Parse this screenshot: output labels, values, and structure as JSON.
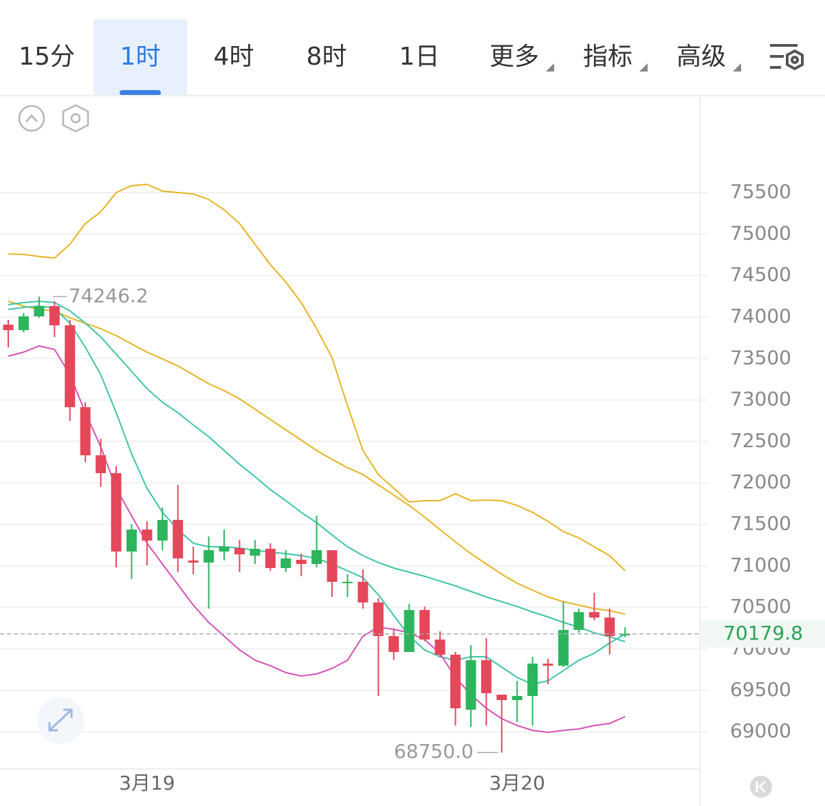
{
  "tabs": [
    {
      "label": "15分"
    },
    {
      "label": "1时"
    },
    {
      "label": "4时"
    },
    {
      "label": "8时"
    },
    {
      "label": "1日"
    },
    {
      "label": "更多",
      "menu": true
    },
    {
      "label": "指标",
      "menu": true
    },
    {
      "label": "高级",
      "menu": true
    }
  ],
  "active_tab": 1,
  "chart_data": {
    "type": "candlestick",
    "categories": [
      null,
      null,
      null,
      null,
      null,
      null,
      null,
      null,
      null,
      "3月19",
      null,
      null,
      null,
      null,
      null,
      null,
      null,
      null,
      null,
      null,
      null,
      null,
      null,
      null,
      null,
      null,
      null,
      null,
      null,
      null,
      null,
      null,
      null,
      "3月20",
      null,
      null,
      null,
      null,
      null,
      null,
      null
    ],
    "open": [
      73908,
      73842,
      74008,
      74132,
      73900,
      72913,
      72333,
      72118,
      71173,
      71438,
      71305,
      71554,
      71065,
      71040,
      71173,
      71214,
      71123,
      71206,
      70974,
      71073,
      71023,
      71189,
      70791,
      70808,
      70559,
      70153,
      69962,
      70468,
      70112,
      69929,
      69266,
      69863,
      69448,
      69382,
      69432,
      69822,
      69797,
      70228,
      70443,
      70377,
      70162
    ],
    "high": [
      73966,
      74049,
      74246.2,
      74190,
      73966,
      72971,
      72532,
      72201,
      71504,
      71537,
      71703,
      71977,
      71231,
      71355,
      71438,
      71313,
      71313,
      71272,
      71189,
      71148,
      71604,
      71189,
      70899,
      70957,
      70609,
      70236,
      70543,
      70509,
      70211,
      69962,
      70045,
      70128,
      69448,
      69614,
      69904,
      69880,
      70568,
      70485,
      70675,
      70485,
      70261
    ],
    "low": [
      73635,
      73817,
      73991,
      73759,
      72748,
      72250,
      71952,
      70982,
      70841,
      71007,
      71189,
      70924,
      70899,
      70485,
      71065,
      70924,
      71023,
      70941,
      70924,
      70874,
      70982,
      70626,
      70626,
      70485,
      69432,
      69863,
      69962,
      70095,
      69904,
      69075,
      69059,
      69075,
      68750,
      69117,
      69075,
      69573,
      69780,
      70194,
      70344,
      69929,
      70140
    ],
    "close": [
      73842,
      74008,
      74132,
      73900,
      72913,
      72333,
      72118,
      71173,
      71438,
      71305,
      71554,
      71090,
      71040,
      71189,
      71231,
      71139,
      71206,
      70974,
      71090,
      71023,
      71189,
      70808,
      70808,
      70559,
      70153,
      69962,
      70468,
      70112,
      69929,
      69283,
      69863,
      69465,
      69382,
      69432,
      69822,
      69797,
      70228,
      70443,
      70377,
      70153,
      70179.8
    ],
    "up_color": "#2db55d",
    "down_color": "#e5475a",
    "lines": [
      {
        "color": "#e8b320",
        "values": [
          74762,
          74754,
          74729,
          74712,
          74878,
          75127,
          75268,
          75500,
          75583,
          75599,
          75517,
          75500,
          75483,
          75417,
          75293,
          75127,
          74878,
          74630,
          74422,
          74174,
          73859,
          73510,
          72930,
          72391,
          72101,
          71935,
          71770,
          71786,
          71786,
          71869,
          71786,
          71794,
          71786,
          71728,
          71645,
          71537,
          71413,
          71338,
          71231,
          71123,
          70941
        ]
      },
      {
        "color": "#e8b320",
        "values": [
          74190,
          74132,
          74091,
          74074,
          73991,
          73925,
          73859,
          73776,
          73676,
          73577,
          73494,
          73411,
          73303,
          73196,
          73113,
          73013,
          72889,
          72764,
          72640,
          72516,
          72391,
          72284,
          72184,
          72101,
          71977,
          71852,
          71728,
          71587,
          71438,
          71289,
          71148,
          71023,
          70899,
          70791,
          70708,
          70626,
          70568,
          70526,
          70485,
          70460,
          70418
        ]
      },
      {
        "color": "#3cc4a8",
        "values": [
          74149,
          74174,
          74190,
          74174,
          74074,
          73925,
          73759,
          73552,
          73345,
          73137,
          72972,
          72847,
          72698,
          72557,
          72391,
          72226,
          72076,
          71919,
          71786,
          71645,
          71521,
          71372,
          71231,
          71123,
          71040,
          70974,
          70924,
          70874,
          70816,
          70758,
          70692,
          70626,
          70568,
          70510,
          70443,
          70385,
          70319,
          70261,
          70194,
          70145,
          70087
        ]
      },
      {
        "color": "#3cc4a8",
        "values": [
          74091,
          74116,
          74132,
          74107,
          73925,
          73635,
          73303,
          72847,
          72350,
          71935,
          71645,
          71438,
          71272,
          71231,
          71231,
          71214,
          71189,
          71164,
          71148,
          71123,
          71090,
          71023,
          70941,
          70858,
          70651,
          70402,
          70153,
          69987,
          69904,
          69863,
          69904,
          69904,
          69780,
          69656,
          69573,
          69614,
          69738,
          69863,
          69946,
          70070,
          70178
        ]
      },
      {
        "color": "#d650b8",
        "values": [
          73527,
          73577,
          73651,
          73610,
          73303,
          72847,
          72433,
          71935,
          71604,
          71272,
          71023,
          70775,
          70526,
          70319,
          70153,
          69987,
          69863,
          69796,
          69714,
          69672,
          69697,
          69763,
          69863,
          70153,
          70261,
          70236,
          70194,
          70112,
          69946,
          69656,
          69448,
          69283,
          69158,
          69075,
          69017,
          68992,
          69017,
          69034,
          69075,
          69100,
          69183
        ]
      }
    ],
    "ylim": [
      68553,
      76661
    ],
    "yticks": [
      69000,
      69500,
      70000,
      70500,
      71000,
      71500,
      72000,
      72500,
      73000,
      73500,
      74000,
      74500,
      75000,
      75500
    ],
    "grid": true,
    "high_marker": {
      "index": 2,
      "value": 74246.2,
      "label": "74246.2"
    },
    "low_marker": {
      "index": 32,
      "value": 68750,
      "label": "68750.0"
    },
    "last_price": {
      "value": 70179.8,
      "label": "70179.8",
      "color": "#2aa155"
    }
  }
}
